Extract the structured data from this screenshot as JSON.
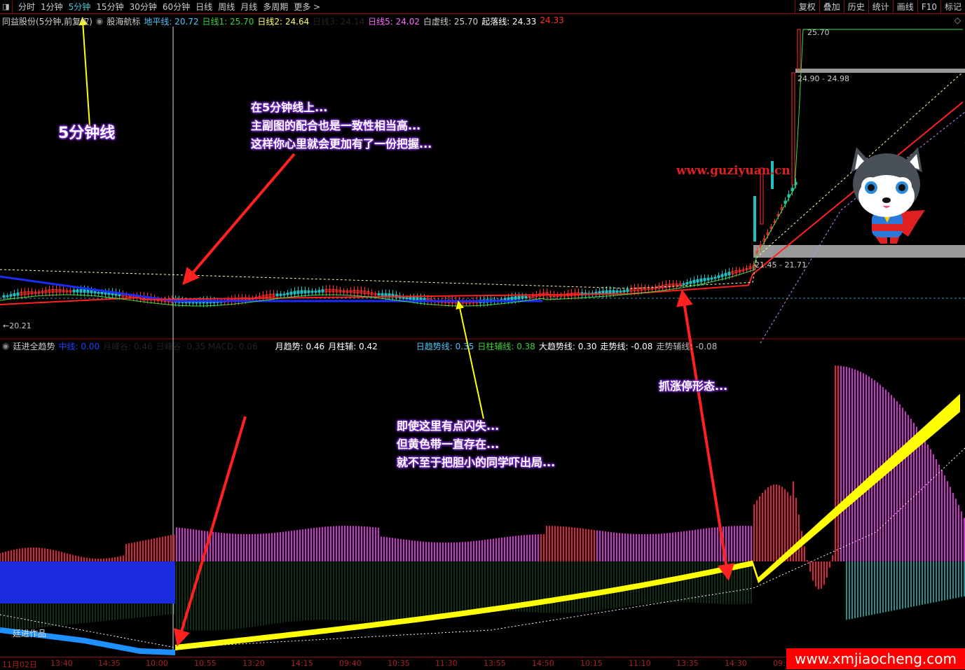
{
  "toolbar": {
    "periods": [
      "分时",
      "1分钟",
      "5分钟",
      "15分钟",
      "30分钟",
      "60分钟",
      "日线",
      "周线",
      "月线",
      "多周期",
      "更多 >"
    ],
    "active_period": "5分钟",
    "right_buttons": [
      "复权",
      "叠加",
      "历史",
      "统计",
      "画线",
      "F10",
      "标记"
    ]
  },
  "main_info": {
    "stock": "同益股份(5分钟,前复权)",
    "indicator": "股海航标",
    "items": [
      {
        "label": "地平线: 20.72",
        "color": "#4fc3f7"
      },
      {
        "label": "日线1: 25.70",
        "color": "#3cd23c"
      },
      {
        "label": "日线2: 24.64",
        "color": "#ffff66"
      },
      {
        "label": "日线3: 24.14",
        "color": "#222222"
      },
      {
        "label": "日线5: 24.02",
        "color": "#ff66ff"
      },
      {
        "label": "白虚线: 25.70",
        "color": "#cccccc"
      },
      {
        "label": "起落线: 24.33",
        "color": "#ffffff"
      },
      {
        "label": "24.33",
        "color": "#ff3030"
      }
    ]
  },
  "main_labels": {
    "top_price": "25.70",
    "band_upper": "24.90 - 24.98",
    "band_lower": "21.45 - 21.71",
    "left_price": "20.21",
    "watermark": "www.guziyuan.cn"
  },
  "sub_info": {
    "indicator": "廷进全趋势",
    "items": [
      {
        "label": "中线: 0.00",
        "color": "#2040ff"
      },
      {
        "label": "月峰谷: 0.46",
        "color": "#222222"
      },
      {
        "label": "日峰谷: 0.35 MACD: 0.06",
        "color": "#222222"
      },
      {
        "label": "月趋势: 0.46",
        "color": "#ffffff"
      },
      {
        "label": "月柱辅: 0.42",
        "color": "#ffffff"
      },
      {
        "label": "日趋势线: 0.35",
        "color": "#4fc3f7"
      },
      {
        "label": "日柱辅线: 0.38",
        "color": "#3cd23c"
      },
      {
        "label": "大趋势线: 0.30",
        "color": "#ffffff"
      },
      {
        "label": "走势线: -0.08",
        "color": "#ffffff"
      },
      {
        "label": "走势辅线: -0.08",
        "color": "#bbbbbb"
      }
    ],
    "credit": "廷进作品"
  },
  "annotations": {
    "five_min": "5分钟线",
    "note1": [
      "在5分钟线上...",
      "主副图的配合也是一致性相当高...",
      "这样你心里就会更加有了一份把握..."
    ],
    "note2": [
      "即使这里有点闪失...",
      "但黄色带一直存在...",
      "就不至于把胆小的同学吓出局..."
    ],
    "note3": "抓涨停形态..."
  },
  "time_axis": [
    "11月02日",
    "13:40",
    "14:35",
    "10:00",
    "10:55",
    "13:20",
    "14:15",
    "09:40",
    "10:35",
    "11:30",
    "13:55",
    "14:50",
    "10:15",
    "11:10",
    "13:35",
    "14:30",
    "09:"
  ],
  "site_banner": "www.xmjiaocheng.com",
  "colors": {
    "up": "#ff2020",
    "down": "#20c0c0",
    "accent": "#4fc3d7",
    "magenta": "#e040e0",
    "yellow": "#ffff00",
    "blue": "#1e90ff"
  }
}
